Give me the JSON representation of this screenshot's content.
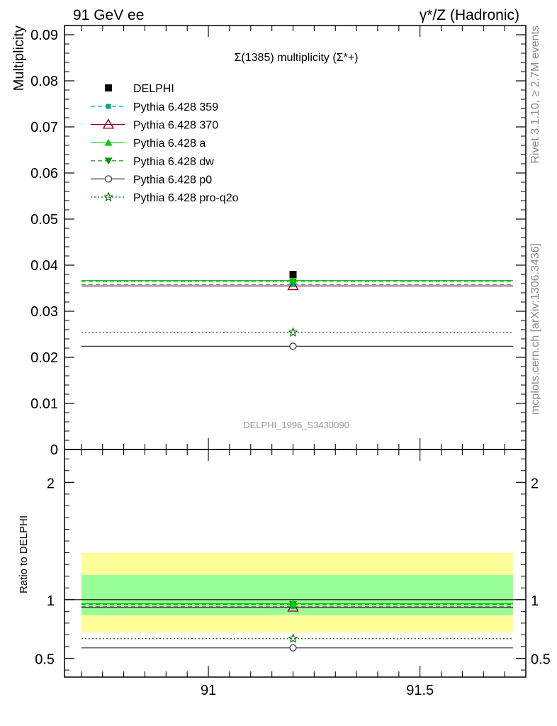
{
  "header": {
    "left": "91 GeV ee",
    "right": "γ*/Z (Hadronic)"
  },
  "side_text": {
    "rivet": "Rivet 3.1.10, ≥ 2.7M events",
    "mcplots": "mcplots.cern.ch [arXiv:1306.3436]"
  },
  "chart_data": [
    {
      "type": "line",
      "title": "Σ(1385) multiplicity (Σ*+)",
      "ylabel": "Multiplicity",
      "watermark": "DELPHI_1996_S3430090",
      "xlim": [
        90.66,
        91.75
      ],
      "ylim": [
        0,
        0.092
      ],
      "yticks": [
        "0",
        "0.01",
        "0.02",
        "0.03",
        "0.04",
        "0.05",
        "0.06",
        "0.07",
        "0.08",
        "0.09"
      ],
      "legend_position": "top-left",
      "data": {
        "name": "DELPHI",
        "x": 91.2,
        "y": 0.038,
        "marker": "square",
        "color": "#000000"
      },
      "series": [
        {
          "name": "Pythia 6.428 359",
          "x": [
            90.7,
            91.72
          ],
          "y": 0.0358,
          "color": "#00a884",
          "dash": "6,4",
          "marker": "smallsquare"
        },
        {
          "name": "Pythia 6.428 370",
          "x": [
            90.7,
            91.72
          ],
          "y": 0.0355,
          "color": "#990022",
          "dash": "",
          "marker": "triangle-open"
        },
        {
          "name": "Pythia 6.428 a",
          "x": [
            90.7,
            91.72
          ],
          "y": 0.0367,
          "color": "#00cc00",
          "dash": "",
          "marker": "triangle-filled"
        },
        {
          "name": "Pythia 6.428 dw",
          "x": [
            90.7,
            91.72
          ],
          "y": 0.0365,
          "color": "#009900",
          "dash": "6,4",
          "marker": "triangle-down"
        },
        {
          "name": "Pythia 6.428 p0",
          "x": [
            90.7,
            91.72
          ],
          "y": 0.0224,
          "color": "#333333",
          "dash": "",
          "marker": "circle-open"
        },
        {
          "name": "Pythia 6.428 pro-q2o",
          "x": [
            90.7,
            91.72
          ],
          "y": 0.0254,
          "color": "#006600",
          "dash": "2,3",
          "marker": "star"
        }
      ]
    },
    {
      "type": "line",
      "ylabel": "Ratio to DELPHI",
      "xlim": [
        90.66,
        91.75
      ],
      "ylim": [
        0.34,
        2.28
      ],
      "xticks": [
        "91",
        "91.5"
      ],
      "yticks": [
        "0.5",
        "1",
        "2"
      ],
      "bands": [
        {
          "low": 0.72,
          "high": 1.4,
          "color": "#ffff99"
        },
        {
          "low": 0.87,
          "high": 1.21,
          "color": "#99ff99"
        }
      ],
      "reference": 1.0,
      "series": [
        {
          "name": "Pythia 6.428 359",
          "y": 0.942
        },
        {
          "name": "Pythia 6.428 370",
          "y": 0.934
        },
        {
          "name": "Pythia 6.428 a",
          "y": 0.966
        },
        {
          "name": "Pythia 6.428 dw",
          "y": 0.961
        },
        {
          "name": "Pythia 6.428 p0",
          "y": 0.589
        },
        {
          "name": "Pythia 6.428 pro-q2o",
          "y": 0.668
        }
      ]
    }
  ]
}
